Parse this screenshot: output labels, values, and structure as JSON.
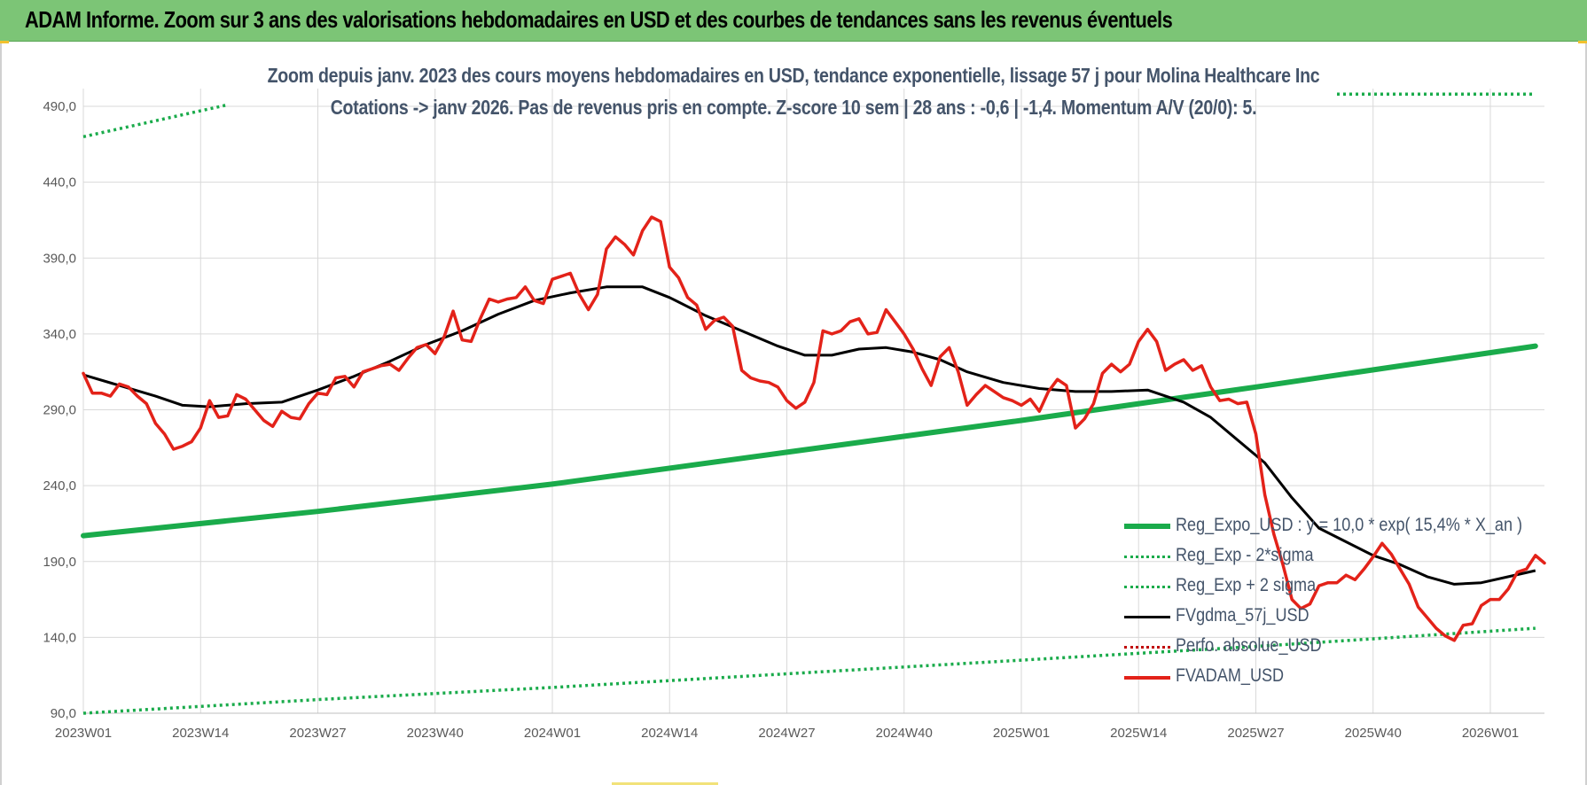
{
  "banner": {
    "title": "ADAM Informe. Zoom sur 3 ans des valorisations hebdomadaires en USD et des courbes de tendances sans les revenus éventuels"
  },
  "chart_data": {
    "type": "line",
    "title": "Zoom depuis janv. 2023 des cours moyens hebdomadaires en USD, tendance exponentielle, lissage 57 j pour Molina Healthcare Inc",
    "subtitle": "Cotations -> janv 2026. Pas de revenus pris en compte. Z-score 10 sem | 28 ans : -0,6 | -1,4. Momentum A/V (20/0): 5.",
    "xlabel": "",
    "ylabel": "",
    "ylim": [
      90,
      490
    ],
    "yticks": [
      "90,0",
      "140,0",
      "190,0",
      "240,0",
      "290,0",
      "340,0",
      "390,0",
      "440,0",
      "490,0"
    ],
    "ytick_values": [
      90,
      140,
      190,
      240,
      290,
      340,
      390,
      440,
      490
    ],
    "xlim": [
      0,
      162
    ],
    "xticks": [
      "2023W01",
      "2023W14",
      "2023W27",
      "2023W40",
      "2024W01",
      "2024W14",
      "2024W27",
      "2024W40",
      "2025W01",
      "2025W14",
      "2025W27",
      "2025W40",
      "2026W01"
    ],
    "xtick_values": [
      0,
      13,
      26,
      39,
      52,
      65,
      78,
      91,
      104,
      117,
      130,
      143,
      156
    ],
    "grid": true,
    "legend_position": "bottom-right",
    "series": [
      {
        "name": "Reg_Expo_USD : y = 10,0 * exp( 15,4% *  X_an )",
        "style": "solid-thick",
        "color": "#1aab4b",
        "points": [
          [
            0,
            207
          ],
          [
            26,
            223
          ],
          [
            52,
            241
          ],
          [
            78,
            262
          ],
          [
            104,
            283
          ],
          [
            130,
            305
          ],
          [
            161,
            332
          ]
        ]
      },
      {
        "name": "Reg_Exp - 2*sigma",
        "style": "dotted",
        "color": "#1aab4b",
        "points": [
          [
            0,
            90
          ],
          [
            26,
            99
          ],
          [
            52,
            107
          ],
          [
            78,
            116
          ],
          [
            104,
            125
          ],
          [
            130,
            134
          ],
          [
            161,
            146
          ]
        ]
      },
      {
        "name": "Reg_Exp + 2 sigma",
        "style": "dotted",
        "color": "#1aab4b",
        "points": [
          [
            0,
            470
          ],
          [
            16,
            491
          ]
        ],
        "points_b": [
          [
            139,
            498
          ],
          [
            161,
            498
          ]
        ]
      },
      {
        "name": "FVgdma_57j_USD",
        "style": "solid",
        "color": "#000000",
        "points": [
          [
            0,
            313
          ],
          [
            4,
            306
          ],
          [
            8,
            299
          ],
          [
            11,
            293
          ],
          [
            14,
            292
          ],
          [
            18,
            294
          ],
          [
            22,
            295
          ],
          [
            26,
            303
          ],
          [
            30,
            312
          ],
          [
            34,
            322
          ],
          [
            38,
            333
          ],
          [
            42,
            342
          ],
          [
            46,
            353
          ],
          [
            50,
            362
          ],
          [
            54,
            367
          ],
          [
            58,
            371
          ],
          [
            62,
            371
          ],
          [
            65,
            364
          ],
          [
            69,
            352
          ],
          [
            73,
            342
          ],
          [
            77,
            332
          ],
          [
            80,
            326
          ],
          [
            83,
            326
          ],
          [
            86,
            330
          ],
          [
            89,
            331
          ],
          [
            92,
            328
          ],
          [
            95,
            323
          ],
          [
            98,
            315
          ],
          [
            102,
            308
          ],
          [
            106,
            304
          ],
          [
            110,
            302
          ],
          [
            114,
            302
          ],
          [
            118,
            303
          ],
          [
            122,
            295
          ],
          [
            125,
            285
          ],
          [
            128,
            270
          ],
          [
            131,
            255
          ],
          [
            134,
            232
          ],
          [
            137,
            212
          ],
          [
            140,
            203
          ],
          [
            143,
            194
          ],
          [
            146,
            188
          ],
          [
            149,
            180
          ],
          [
            152,
            175
          ],
          [
            155,
            176
          ],
          [
            158,
            180
          ],
          [
            161,
            184
          ]
        ]
      },
      {
        "name": "Perfo. absolue_USD",
        "style": "dotted",
        "color": "#c00000",
        "points": []
      },
      {
        "name": "FVADAM_USD",
        "style": "solid-thick",
        "color": "#e32219",
        "points": [
          [
            0,
            314
          ],
          [
            1,
            301
          ],
          [
            2,
            301
          ],
          [
            3,
            299
          ],
          [
            4,
            307
          ],
          [
            5,
            305
          ],
          [
            6,
            299
          ],
          [
            7,
            294
          ],
          [
            8,
            281
          ],
          [
            9,
            274
          ],
          [
            10,
            264
          ],
          [
            11,
            266
          ],
          [
            12,
            269
          ],
          [
            13,
            278
          ],
          [
            14,
            296
          ],
          [
            15,
            285
          ],
          [
            16,
            286
          ],
          [
            17,
            300
          ],
          [
            18,
            297
          ],
          [
            19,
            290
          ],
          [
            20,
            283
          ],
          [
            21,
            279
          ],
          [
            22,
            289
          ],
          [
            23,
            285
          ],
          [
            24,
            284
          ],
          [
            25,
            294
          ],
          [
            26,
            301
          ],
          [
            27,
            300
          ],
          [
            28,
            311
          ],
          [
            29,
            312
          ],
          [
            30,
            305
          ],
          [
            31,
            315
          ],
          [
            32,
            317
          ],
          [
            33,
            319
          ],
          [
            34,
            320
          ],
          [
            35,
            316
          ],
          [
            36,
            324
          ],
          [
            37,
            331
          ],
          [
            38,
            333
          ],
          [
            39,
            327
          ],
          [
            40,
            338
          ],
          [
            41,
            355
          ],
          [
            42,
            336
          ],
          [
            43,
            335
          ],
          [
            44,
            350
          ],
          [
            45,
            363
          ],
          [
            46,
            361
          ],
          [
            47,
            363
          ],
          [
            48,
            364
          ],
          [
            49,
            371
          ],
          [
            50,
            362
          ],
          [
            51,
            360
          ],
          [
            52,
            376
          ],
          [
            53,
            378
          ],
          [
            54,
            380
          ],
          [
            55,
            366
          ],
          [
            56,
            356
          ],
          [
            57,
            366
          ],
          [
            58,
            396
          ],
          [
            59,
            404
          ],
          [
            60,
            399
          ],
          [
            61,
            392
          ],
          [
            62,
            408
          ],
          [
            63,
            417
          ],
          [
            64,
            414
          ],
          [
            65,
            384
          ],
          [
            66,
            377
          ],
          [
            67,
            364
          ],
          [
            68,
            359
          ],
          [
            69,
            343
          ],
          [
            70,
            349
          ],
          [
            71,
            351
          ],
          [
            72,
            345
          ],
          [
            73,
            316
          ],
          [
            74,
            311
          ],
          [
            75,
            309
          ],
          [
            76,
            308
          ],
          [
            77,
            305
          ],
          [
            78,
            296
          ],
          [
            79,
            291
          ],
          [
            80,
            295
          ],
          [
            81,
            308
          ],
          [
            82,
            342
          ],
          [
            83,
            340
          ],
          [
            84,
            342
          ],
          [
            85,
            348
          ],
          [
            86,
            350
          ],
          [
            87,
            340
          ],
          [
            88,
            341
          ],
          [
            89,
            356
          ],
          [
            90,
            348
          ],
          [
            91,
            340
          ],
          [
            92,
            330
          ],
          [
            93,
            317
          ],
          [
            94,
            306
          ],
          [
            95,
            325
          ],
          [
            96,
            331
          ],
          [
            97,
            315
          ],
          [
            98,
            293
          ],
          [
            99,
            300
          ],
          [
            100,
            306
          ],
          [
            101,
            302
          ],
          [
            102,
            298
          ],
          [
            103,
            296
          ],
          [
            104,
            293
          ],
          [
            105,
            297
          ],
          [
            106,
            289
          ],
          [
            107,
            302
          ],
          [
            108,
            310
          ],
          [
            109,
            306
          ],
          [
            110,
            278
          ],
          [
            111,
            284
          ],
          [
            112,
            294
          ],
          [
            113,
            314
          ],
          [
            114,
            320
          ],
          [
            115,
            315
          ],
          [
            116,
            320
          ],
          [
            117,
            335
          ],
          [
            118,
            343
          ],
          [
            119,
            335
          ],
          [
            120,
            316
          ],
          [
            121,
            320
          ],
          [
            122,
            323
          ],
          [
            123,
            316
          ],
          [
            124,
            319
          ],
          [
            125,
            305
          ],
          [
            126,
            296
          ],
          [
            127,
            297
          ],
          [
            128,
            294
          ],
          [
            129,
            295
          ],
          [
            130,
            274
          ],
          [
            131,
            234
          ],
          [
            132,
            208
          ],
          [
            133,
            188
          ],
          [
            134,
            165
          ],
          [
            135,
            159
          ],
          [
            136,
            162
          ],
          [
            137,
            174
          ],
          [
            138,
            176
          ],
          [
            139,
            176
          ],
          [
            140,
            181
          ],
          [
            141,
            178
          ],
          [
            142,
            185
          ],
          [
            143,
            193
          ],
          [
            144,
            202
          ],
          [
            145,
            195
          ],
          [
            146,
            185
          ],
          [
            147,
            175
          ],
          [
            148,
            160
          ],
          [
            149,
            153
          ],
          [
            150,
            146
          ],
          [
            151,
            141
          ],
          [
            152,
            138
          ],
          [
            153,
            148
          ],
          [
            154,
            149
          ],
          [
            155,
            161
          ],
          [
            156,
            165
          ],
          [
            157,
            165
          ],
          [
            158,
            172
          ],
          [
            159,
            183
          ],
          [
            160,
            185
          ],
          [
            161,
            194
          ],
          [
            162,
            189
          ]
        ]
      }
    ]
  }
}
